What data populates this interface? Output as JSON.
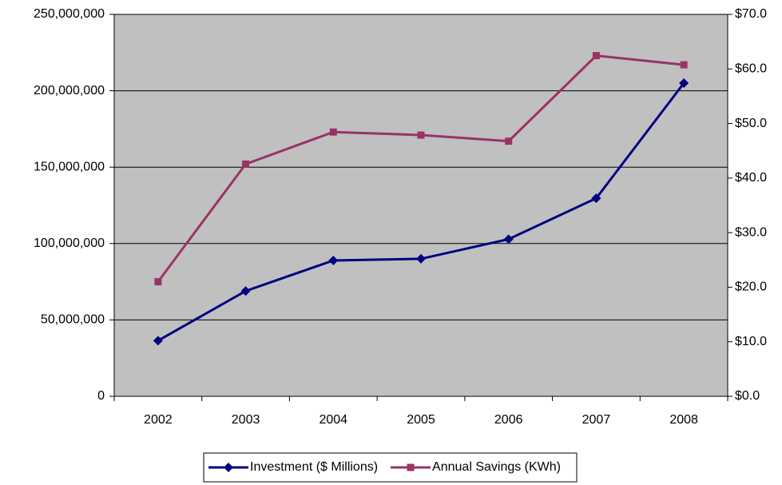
{
  "chart_data": {
    "type": "line",
    "categories": [
      "2002",
      "2003",
      "2004",
      "2005",
      "2006",
      "2007",
      "2008"
    ],
    "series": [
      {
        "name": "Investment ($ Millions)",
        "color": "#000080",
        "marker": "diamond",
        "axis": "y2",
        "values": [
          10.2,
          19.3,
          24.9,
          25.2,
          28.8,
          36.3,
          57.4
        ]
      },
      {
        "name": "Annual Savings (KWh)",
        "color": "#993366",
        "marker": "square",
        "values": [
          75000000,
          152000000,
          173000000,
          171000000,
          167000000,
          223000000,
          217000000
        ]
      }
    ],
    "ylim": [
      0,
      250000000
    ],
    "yticks": [
      0,
      {
        "value": 50000000,
        "label": "50,000,000"
      },
      {
        "value": 100000000,
        "label": "100,000,000"
      },
      {
        "value": 150000000,
        "label": "150,000,000"
      },
      {
        "value": 200000000,
        "label": "200,000,000"
      },
      {
        "value": 250000000,
        "label": "250,000,000"
      }
    ],
    "y2lim": [
      0,
      70
    ],
    "y2ticks": [
      {
        "value": 0,
        "label": "$0.0"
      },
      {
        "value": 10,
        "label": "$10.0"
      },
      {
        "value": 20,
        "label": "$20.0"
      },
      {
        "value": 30,
        "label": "$30.0"
      },
      {
        "value": 40,
        "label": "$40.0"
      },
      {
        "value": 50,
        "label": "$50.0"
      },
      {
        "value": 60,
        "label": "$60.0"
      },
      {
        "value": 70,
        "label": "$70.0"
      }
    ],
    "grid": true,
    "background": "#c0c0c0",
    "legend": "bottom"
  }
}
